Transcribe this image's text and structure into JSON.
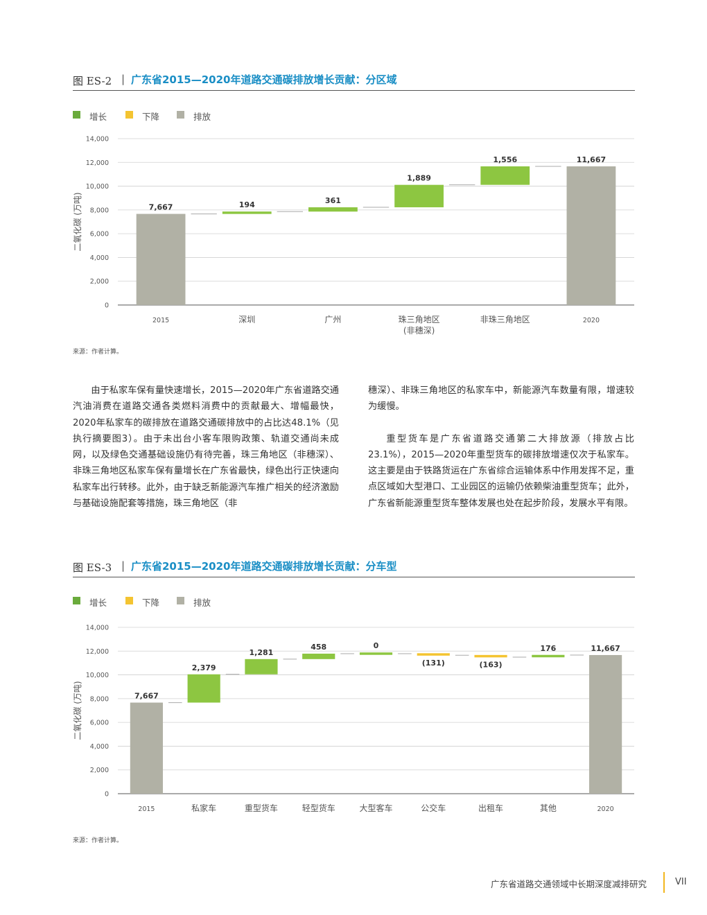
{
  "figure1": {
    "number": "图 ES-2",
    "separator": "|",
    "title": "广东省2015—2020年道路交通碳排放增长贡献：分区域",
    "legend": [
      {
        "label": "增长",
        "color": "#6aab3c"
      },
      {
        "label": "下降",
        "color": "#f4c431"
      },
      {
        "label": "排放",
        "color": "#b1b1a5"
      }
    ],
    "source": "来源：作者计算。"
  },
  "figure2": {
    "number": "图 ES-3",
    "separator": "|",
    "title": "广东省2015—2020年道路交通碳排放增长贡献：分车型",
    "legend": [
      {
        "label": "增长",
        "color": "#6aab3c"
      },
      {
        "label": "下降",
        "color": "#f4c431"
      },
      {
        "label": "排放",
        "color": "#b1b1a5"
      }
    ],
    "source": "来源：作者计算。"
  },
  "chart_data": [
    {
      "type": "bar",
      "subtype": "waterfall",
      "ylabel": "二氧化碳 (万吨)",
      "ylim": [
        0,
        14000
      ],
      "yticks": [
        "0",
        "2,000",
        "4,000",
        "6,000",
        "8,000",
        "10,000",
        "12,000",
        "14,000"
      ],
      "grid": true,
      "categories": [
        [
          "2015"
        ],
        [
          "深圳"
        ],
        [
          "广州"
        ],
        [
          "珠三角地区",
          "(非穗深)"
        ],
        [
          "非珠三角地区"
        ],
        [
          "2020"
        ]
      ],
      "values": [
        7667,
        194,
        361,
        1889,
        1556,
        11667
      ],
      "labels": [
        "7,667",
        "194",
        "361",
        "1,889",
        "1,556",
        "11,667"
      ],
      "kinds": [
        "total",
        "increase",
        "increase",
        "increase",
        "increase",
        "total"
      ]
    },
    {
      "type": "bar",
      "subtype": "waterfall",
      "ylabel": "二氧化碳 (万吨)",
      "ylim": [
        0,
        14000
      ],
      "yticks": [
        "0",
        "2,000",
        "4,000",
        "6,000",
        "8,000",
        "10,000",
        "12,000",
        "14,000"
      ],
      "grid": true,
      "categories": [
        [
          "2015"
        ],
        [
          "私家车"
        ],
        [
          "重型货车"
        ],
        [
          "轻型货车"
        ],
        [
          "大型客车"
        ],
        [
          "公交车"
        ],
        [
          "出租车"
        ],
        [
          "其他"
        ],
        [
          "2020"
        ]
      ],
      "values": [
        7667,
        2379,
        1281,
        458,
        0,
        -131,
        -163,
        176,
        11667
      ],
      "labels": [
        "7,667",
        "2,379",
        "1,281",
        "458",
        "0",
        "(131)",
        "(163)",
        "176",
        "11,667"
      ],
      "kinds": [
        "total",
        "increase",
        "increase",
        "increase",
        "increase",
        "decrease",
        "decrease",
        "increase",
        "total"
      ]
    }
  ],
  "text": {
    "col1": "由于私家车保有量快速增长，2015—2020年广东省道路交通汽油消费在道路交通各类燃料消费中的贡献最大、增幅最快，2020年私家车的碳排放在道路交通碳排放中的占比达48.1%（见执行摘要图3）。由于未出台小客车限购政策、轨道交通尚未成网，以及绿色交通基础设施仍有待完善，珠三角地区（非穗深）、非珠三角地区私家车保有量增长在广东省最快，绿色出行正快速向私家车出行转移。此外，由于缺乏新能源汽车推广相关的经济激励与基础设施配套等措施，珠三角地区（非",
    "col2_p1": "穗深）、非珠三角地区的私家车中，新能源汽车数量有限，增速较为缓慢。",
    "col2_p2": "重型货车是广东省道路交通第二大排放源（排放占比23.1%），2015—2020年重型货车的碳排放增速仅次于私家车。这主要是由于铁路货运在广东省综合运输体系中作用发挥不足，重点区域如大型港口、工业园区的运输仍依赖柴油重型货车；此外，广东省新能源重型货车整体发展也处在起步阶段，发展水平有限。"
  },
  "footer": {
    "title": "广东省道路交通领域中长期深度减排研究",
    "page": "VII"
  }
}
